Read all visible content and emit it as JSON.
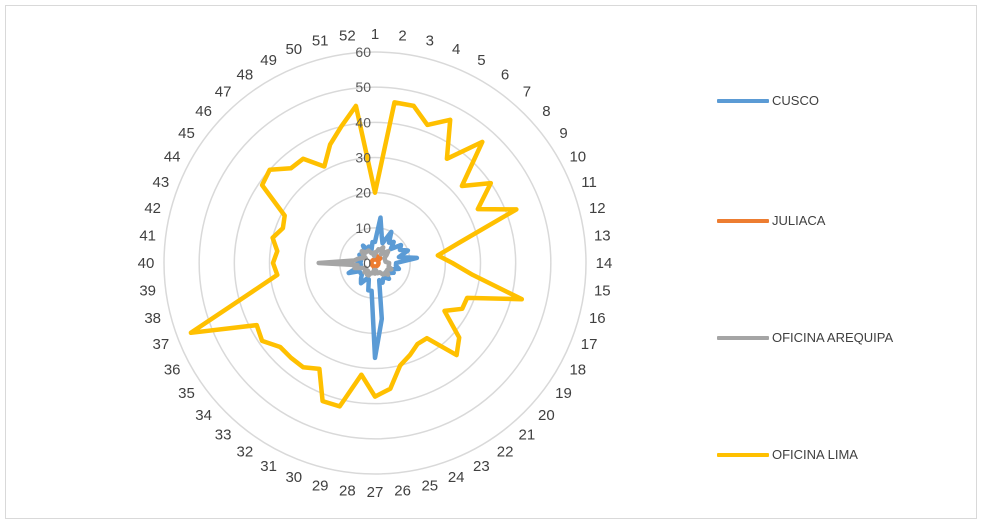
{
  "chart_data": {
    "type": "radar",
    "categories": [
      "1",
      "2",
      "3",
      "4",
      "5",
      "6",
      "7",
      "8",
      "9",
      "10",
      "11",
      "12",
      "13",
      "14",
      "15",
      "16",
      "17",
      "18",
      "19",
      "20",
      "21",
      "22",
      "23",
      "24",
      "25",
      "26",
      "27",
      "28",
      "29",
      "30",
      "31",
      "32",
      "33",
      "34",
      "35",
      "36",
      "37",
      "38",
      "39",
      "40",
      "41",
      "42",
      "43",
      "44",
      "45",
      "46",
      "47",
      "48",
      "49",
      "50",
      "51",
      "52"
    ],
    "rlim": [
      0,
      60
    ],
    "r_ticks": [
      0,
      10,
      20,
      30,
      40,
      50,
      60
    ],
    "grid": true,
    "legend_position": "right",
    "series": [
      {
        "name": "CUSCO",
        "color": "#5b9bd5",
        "values": [
          6,
          13,
          8,
          6,
          10,
          7,
          8,
          6,
          9,
          8,
          10,
          7,
          12,
          6,
          6,
          7,
          5,
          6,
          5,
          4,
          6,
          5,
          5,
          6,
          5,
          16,
          27,
          8,
          8,
          5,
          5,
          7,
          6,
          5,
          5,
          5,
          8,
          5,
          4,
          5,
          4,
          5,
          4,
          5,
          4,
          5,
          4,
          6,
          4,
          5,
          4,
          6
        ]
      },
      {
        "name": "JULIACA",
        "color": "#ed7d31",
        "values": [
          1,
          1,
          1,
          2,
          1,
          1,
          1,
          2,
          1,
          1,
          1,
          1,
          1,
          1,
          1,
          1,
          1,
          1,
          1,
          1,
          1,
          1,
          1,
          1,
          1,
          1,
          1,
          2,
          1,
          1,
          1,
          1,
          1,
          1,
          1,
          1,
          1,
          1,
          1,
          1,
          1,
          1,
          1,
          1,
          1,
          1,
          1,
          1,
          1,
          1,
          1,
          1
        ]
      },
      {
        "name": "OFICINA AREQUIPA",
        "color": "#a5a5a5",
        "values": [
          3,
          3,
          4,
          4,
          5,
          3,
          4,
          5,
          4,
          3,
          3,
          3,
          3,
          4,
          4,
          4,
          5,
          4,
          4,
          5,
          4,
          4,
          3,
          3,
          3,
          2,
          3,
          2,
          3,
          3,
          4,
          4,
          3,
          4,
          3,
          3,
          4,
          6,
          5,
          16,
          6,
          5,
          4,
          3,
          4,
          5,
          4,
          4,
          4,
          3,
          3,
          2
        ]
      },
      {
        "name": "OFICINA LIMA",
        "color": "#ffc000",
        "values": [
          20,
          46,
          46,
          42,
          46,
          36,
          46,
          33,
          40,
          33,
          43,
          25,
          18,
          22,
          28,
          43,
          28,
          28,
          24,
          32,
          35,
          26,
          26,
          28,
          30,
          36,
          38,
          32,
          42,
          42,
          34,
          36,
          36,
          36,
          39,
          38,
          56,
          37,
          28,
          29,
          28,
          30,
          28,
          29,
          39,
          40,
          36,
          36,
          31,
          36,
          40,
          45
        ]
      }
    ]
  }
}
